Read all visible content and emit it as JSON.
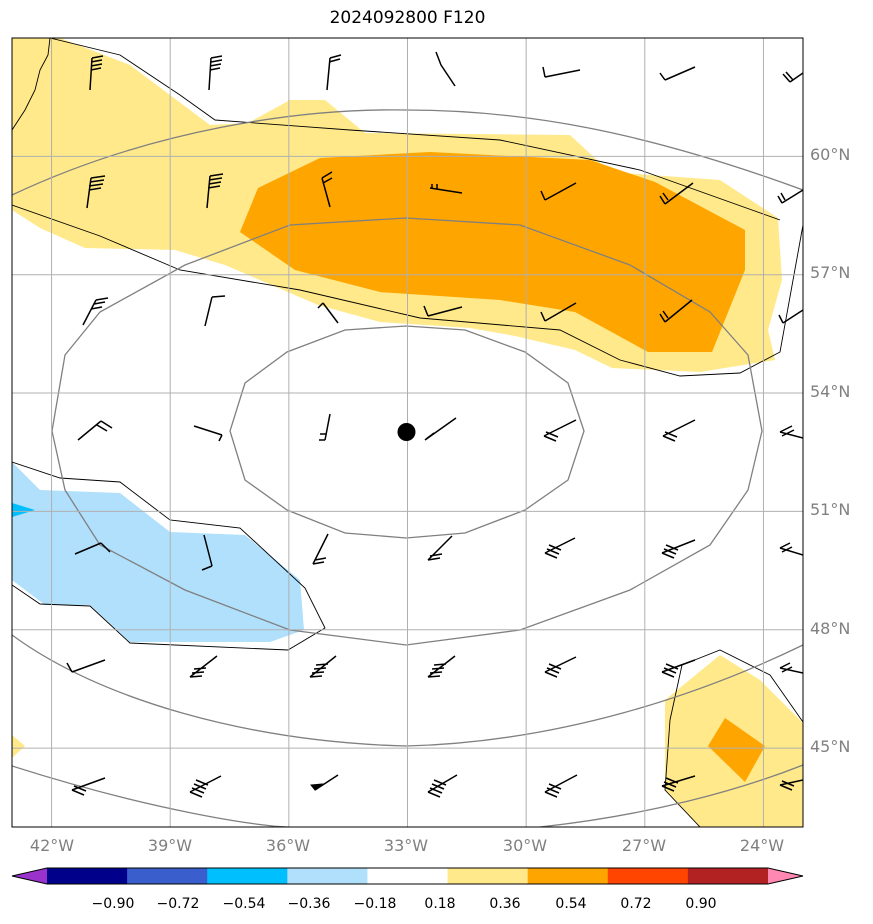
{
  "title": "2024092800 F120",
  "map": {
    "lon_range": [
      -43,
      -23
    ],
    "lat_range": [
      43,
      63
    ],
    "lon_ticks": [
      {
        "value": -42,
        "label": "42°W"
      },
      {
        "value": -39,
        "label": "39°W"
      },
      {
        "value": -36,
        "label": "36°W"
      },
      {
        "value": -33,
        "label": "33°W"
      },
      {
        "value": -30,
        "label": "30°W"
      },
      {
        "value": -27,
        "label": "27°W"
      },
      {
        "value": -24,
        "label": "24°W"
      }
    ],
    "lat_ticks": [
      {
        "value": 60,
        "label": "60°N"
      },
      {
        "value": 57,
        "label": "57°N"
      },
      {
        "value": 54,
        "label": "54°N"
      },
      {
        "value": 51,
        "label": "51°N"
      },
      {
        "value": 48,
        "label": "48°N"
      },
      {
        "value": 45,
        "label": "45°N"
      }
    ],
    "center_marker": {
      "lon": -33,
      "lat": 53
    },
    "colors": {
      "light_yellow": "#ffe98a",
      "orange": "#ffa500",
      "light_blue": "#b0e0fc",
      "blue": "#00bfff",
      "contour": "#808080",
      "grid": "#b0b0b0"
    }
  },
  "colorbar": {
    "colors": [
      "#9933cc",
      "#00008b",
      "#3a5fcd",
      "#00bfff",
      "#b0e0fc",
      "#ffffff",
      "#ffe98a",
      "#ffa500",
      "#ff4500",
      "#b22222",
      "#ff88b2"
    ],
    "labels": [
      "−0.90",
      "−0.72",
      "−0.54",
      "−0.36",
      "−0.18",
      "0.18",
      "0.36",
      "0.54",
      "0.72",
      "0.90"
    ]
  }
}
